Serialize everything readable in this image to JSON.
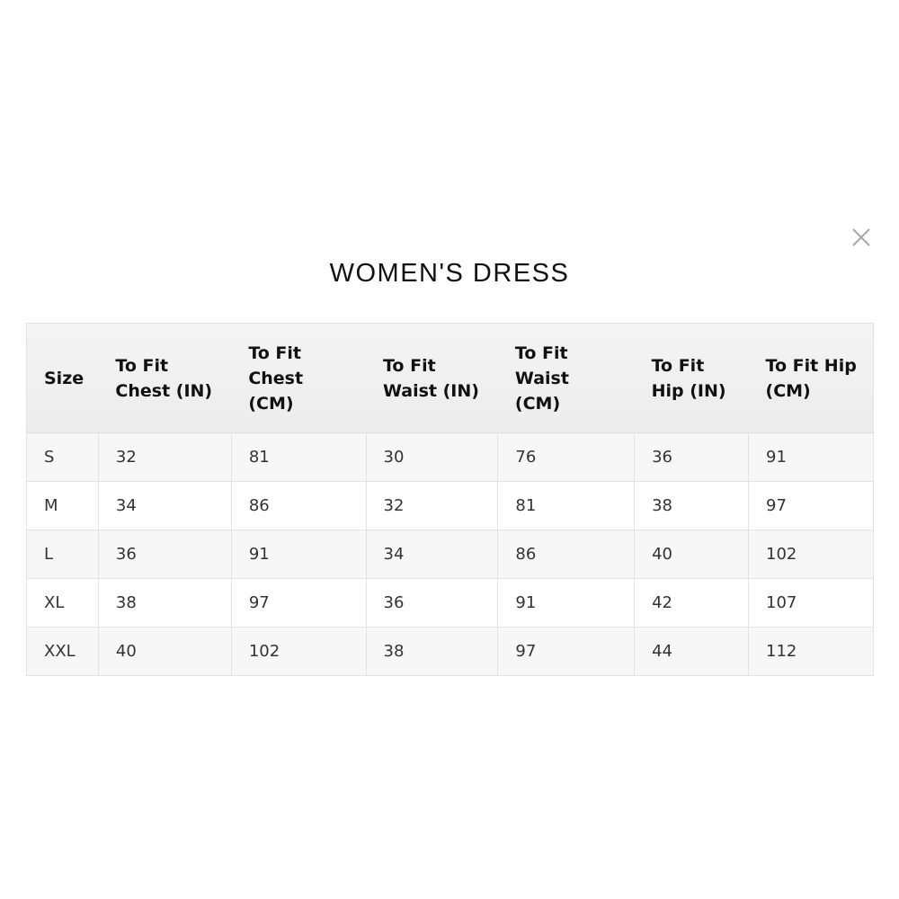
{
  "modal": {
    "title": "WOMEN'S DRESS",
    "close_icon": "close-icon"
  },
  "table": {
    "headers": [
      "Size",
      "To Fit Chest (IN)",
      "To Fit Chest (CM)",
      "To Fit Waist (IN)",
      "To Fit Waist (CM)",
      "To Fit Hip (IN)",
      "To Fit Hip (CM)"
    ],
    "rows": [
      [
        "S",
        "32",
        "81",
        "30",
        "76",
        "36",
        "91"
      ],
      [
        "M",
        "34",
        "86",
        "32",
        "81",
        "38",
        "97"
      ],
      [
        "L",
        "36",
        "91",
        "34",
        "86",
        "40",
        "102"
      ],
      [
        "XL",
        "38",
        "97",
        "36",
        "91",
        "42",
        "107"
      ],
      [
        "XXL",
        "40",
        "102",
        "38",
        "97",
        "44",
        "112"
      ]
    ]
  }
}
